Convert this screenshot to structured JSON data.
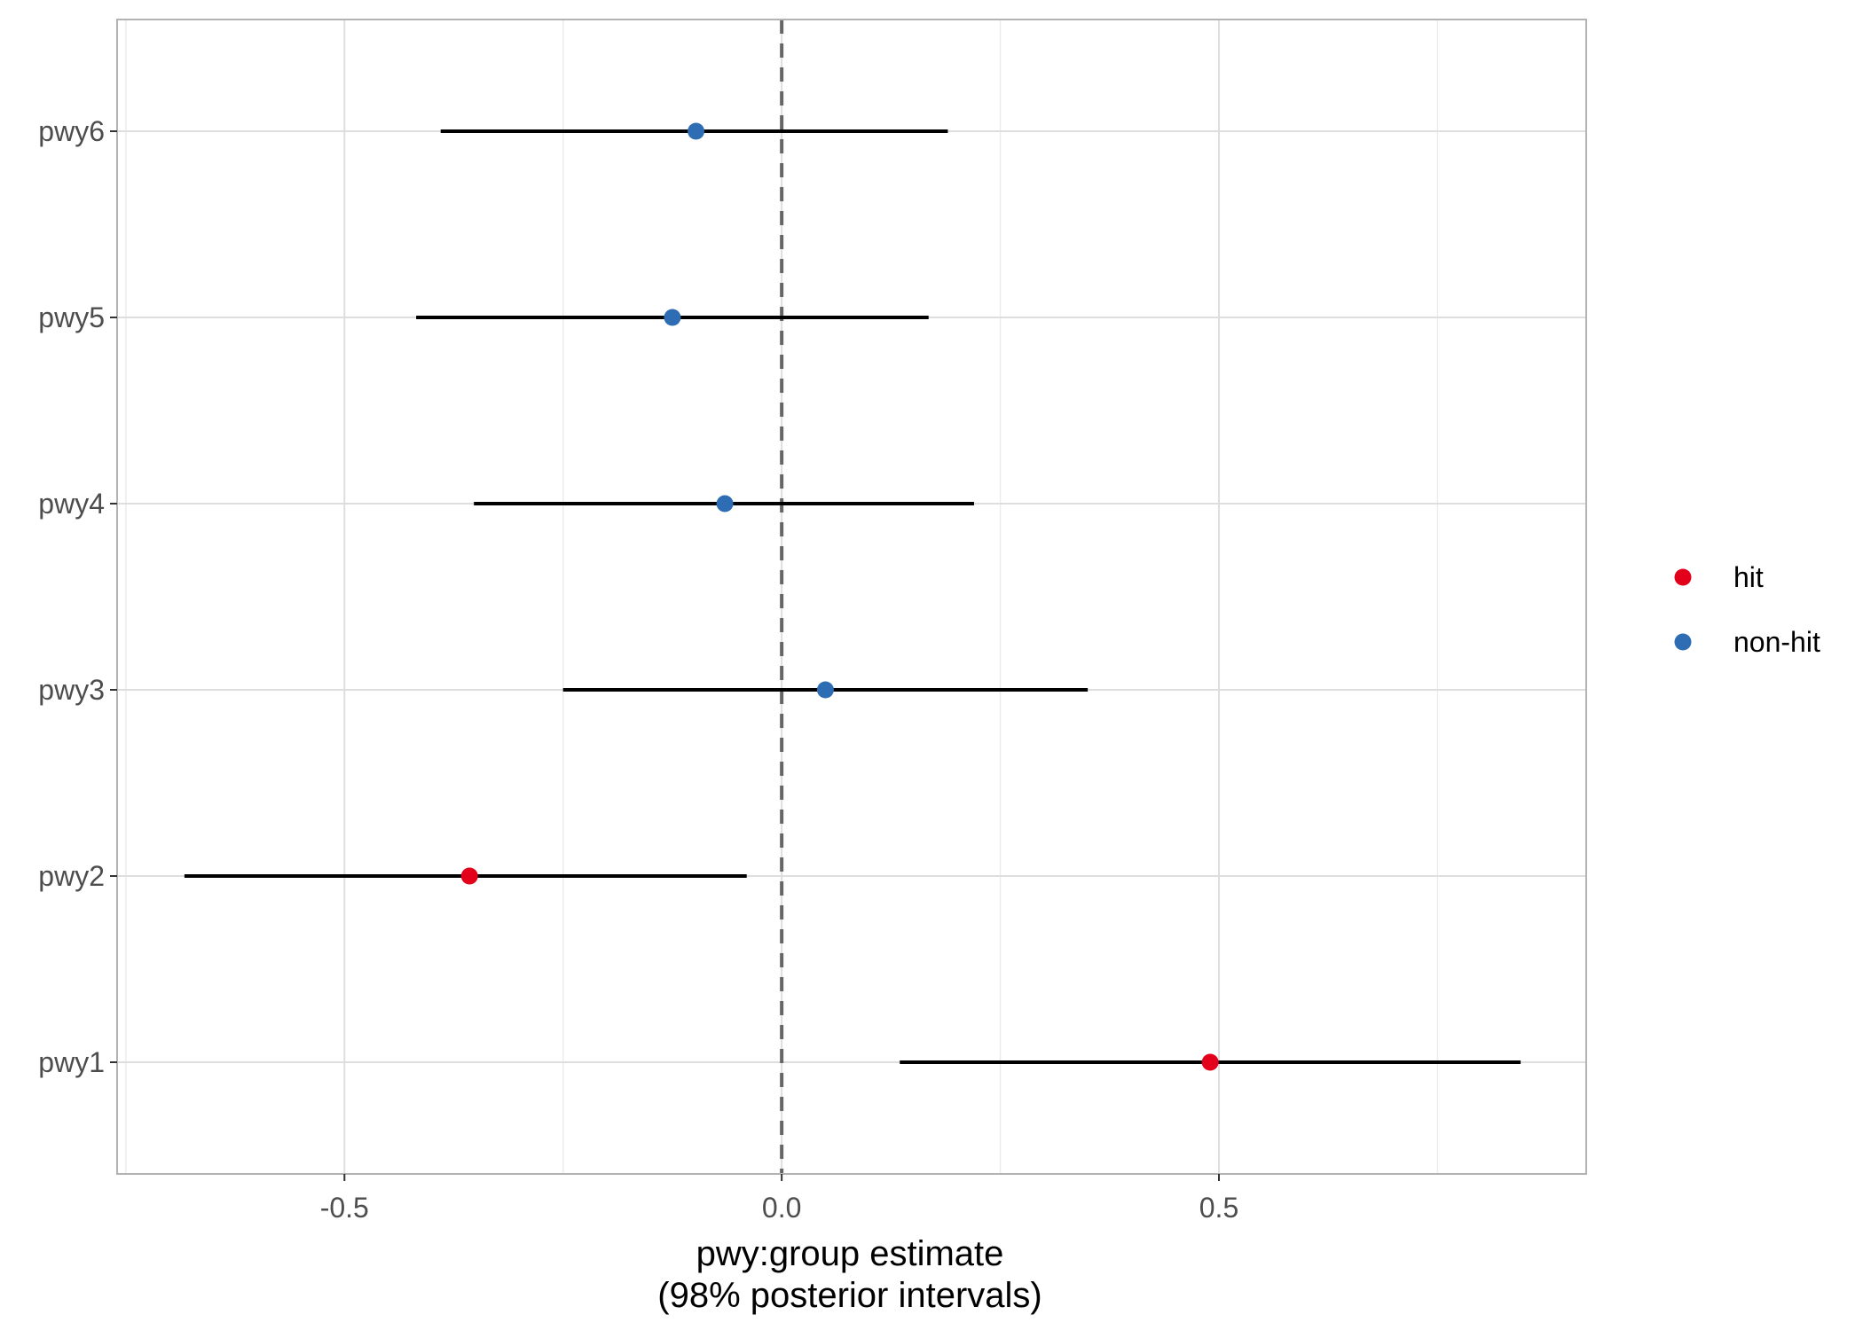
{
  "chart_data": {
    "type": "forest",
    "title": "",
    "xlabel_line1": "pwy:group estimate",
    "xlabel_line2": "(98% posterior intervals)",
    "ylabel": "",
    "xlim": [
      -0.76,
      0.92
    ],
    "x_ticks": [
      -0.5,
      0.0,
      0.5
    ],
    "x_tick_labels": [
      "-0.5",
      "0.0",
      "0.5"
    ],
    "x_minor_ticks": [
      -0.75,
      -0.25,
      0.25,
      0.75
    ],
    "categories": [
      "pwy1",
      "pwy2",
      "pwy3",
      "pwy4",
      "pwy5",
      "pwy6"
    ],
    "reference_line": 0.0,
    "grid": true,
    "legend_position": "right",
    "legend": [
      {
        "label": "hit",
        "color": "#e3001b"
      },
      {
        "label": "non-hit",
        "color": "#2e6db4"
      }
    ],
    "points": [
      {
        "category": "pwy1",
        "estimate": 0.49,
        "lower": 0.135,
        "upper": 0.845,
        "group": "hit"
      },
      {
        "category": "pwy2",
        "estimate": -0.357,
        "lower": -0.683,
        "upper": -0.04,
        "group": "hit"
      },
      {
        "category": "pwy3",
        "estimate": 0.05,
        "lower": -0.25,
        "upper": 0.35,
        "group": "non-hit"
      },
      {
        "category": "pwy4",
        "estimate": -0.065,
        "lower": -0.352,
        "upper": 0.22,
        "group": "non-hit"
      },
      {
        "category": "pwy5",
        "estimate": -0.125,
        "lower": -0.418,
        "upper": 0.168,
        "group": "non-hit"
      },
      {
        "category": "pwy6",
        "estimate": -0.098,
        "lower": -0.39,
        "upper": 0.19,
        "group": "non-hit"
      }
    ]
  }
}
